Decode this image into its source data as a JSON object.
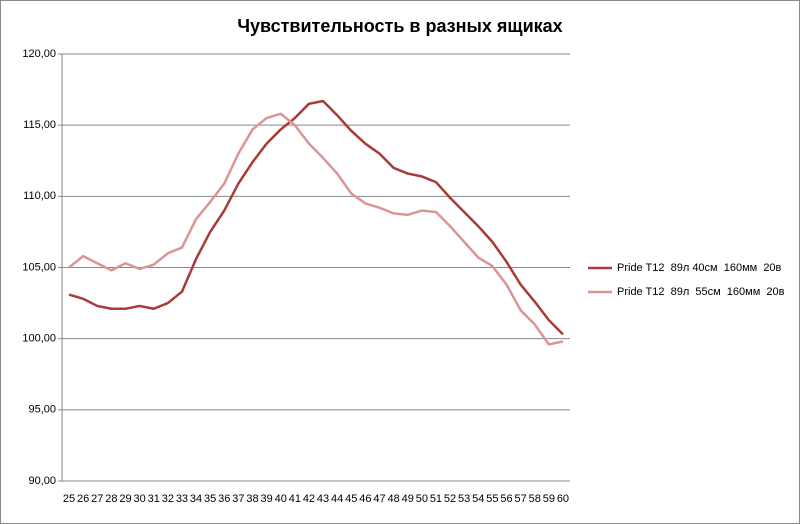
{
  "chart_data": {
    "type": "line",
    "title": "Чувствительность в разных ящиках",
    "categories": [
      "25",
      "26",
      "27",
      "28",
      "29",
      "30",
      "31",
      "32",
      "33",
      "34",
      "35",
      "36",
      "37",
      "38",
      "39",
      "40",
      "41",
      "42",
      "43",
      "44",
      "45",
      "46",
      "47",
      "48",
      "49",
      "50",
      "51",
      "52",
      "53",
      "54",
      "55",
      "56",
      "57",
      "58",
      "59",
      "60"
    ],
    "series": [
      {
        "name": "Pride T12  89л 40см  160мм  20в",
        "color": "#a83a37",
        "values": [
          103.1,
          102.8,
          102.3,
          102.1,
          102.1,
          102.3,
          102.1,
          102.5,
          103.3,
          105.6,
          107.5,
          109.0,
          110.9,
          112.4,
          113.7,
          114.7,
          115.5,
          116.5,
          116.7,
          115.7,
          114.6,
          113.7,
          113.0,
          112.0,
          111.6,
          111.4,
          111.0,
          109.9,
          108.9,
          107.9,
          106.8,
          105.4,
          103.8,
          102.6,
          101.3,
          100.3
        ]
      },
      {
        "name": "Pride T12  89л  55см  160мм  20в",
        "color": "#d99694",
        "values": [
          105.0,
          105.8,
          105.3,
          104.8,
          105.3,
          104.9,
          105.2,
          106.0,
          106.4,
          108.4,
          109.6,
          110.9,
          113.0,
          114.7,
          115.5,
          115.8,
          115.0,
          113.7,
          112.7,
          111.6,
          110.2,
          109.5,
          109.2,
          108.8,
          108.7,
          109.0,
          108.9,
          107.9,
          106.8,
          105.7,
          105.1,
          103.8,
          102.0,
          101.0,
          99.6,
          99.8
        ]
      }
    ],
    "ylim": [
      90,
      120
    ],
    "yticks": [
      {
        "value": 90,
        "label": "90,00"
      },
      {
        "value": 95,
        "label": "95,00"
      },
      {
        "value": 100,
        "label": "100,00"
      },
      {
        "value": 105,
        "label": "105,00"
      },
      {
        "value": 110,
        "label": "110,00"
      },
      {
        "value": 115,
        "label": "115,00"
      },
      {
        "value": 120,
        "label": "120,00"
      }
    ],
    "grid": true,
    "legend": "right"
  }
}
